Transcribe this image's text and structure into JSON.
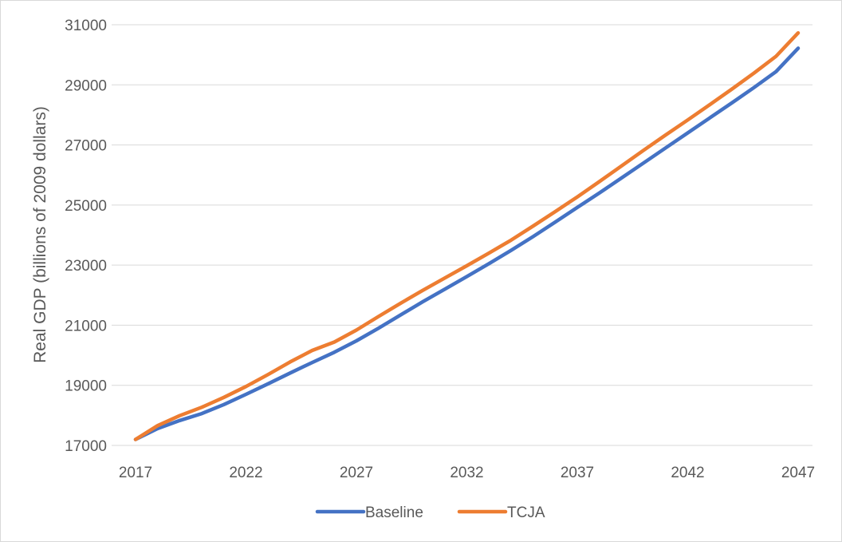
{
  "chart_data": {
    "type": "line",
    "title": "",
    "xlabel": "",
    "ylabel": "Real GDP (billions of 2009 dollars)",
    "xlim": [
      2017,
      2047
    ],
    "ylim": [
      17000,
      31000
    ],
    "x_ticks": [
      "2017",
      "2022",
      "2027",
      "2032",
      "2037",
      "2042",
      "2047"
    ],
    "y_ticks": [
      "17000",
      "19000",
      "21000",
      "23000",
      "25000",
      "27000",
      "29000",
      "31000"
    ],
    "grid": "horizontal",
    "legend_position": "bottom",
    "x": [
      2017,
      2018,
      2019,
      2020,
      2021,
      2022,
      2023,
      2024,
      2025,
      2026,
      2027,
      2028,
      2029,
      2030,
      2031,
      2032,
      2033,
      2034,
      2035,
      2036,
      2037,
      2038,
      2039,
      2040,
      2041,
      2042,
      2043,
      2044,
      2045,
      2046,
      2047
    ],
    "series": [
      {
        "name": "Baseline",
        "color": "#4472C4",
        "values": [
          17200,
          17560,
          17830,
          18060,
          18360,
          18700,
          19050,
          19410,
          19760,
          20100,
          20480,
          20900,
          21340,
          21780,
          22200,
          22620,
          23050,
          23490,
          23950,
          24430,
          24920,
          25400,
          25900,
          26400,
          26900,
          27400,
          27900,
          28400,
          28910,
          29440,
          30220
        ]
      },
      {
        "name": "TCJA",
        "color": "#ED7D31",
        "values": [
          17200,
          17660,
          17990,
          18270,
          18600,
          18960,
          19360,
          19780,
          20160,
          20440,
          20840,
          21290,
          21730,
          22160,
          22570,
          22980,
          23400,
          23830,
          24300,
          24780,
          25270,
          25780,
          26300,
          26820,
          27330,
          27830,
          28340,
          28860,
          29390,
          29950,
          30730
        ]
      }
    ]
  }
}
